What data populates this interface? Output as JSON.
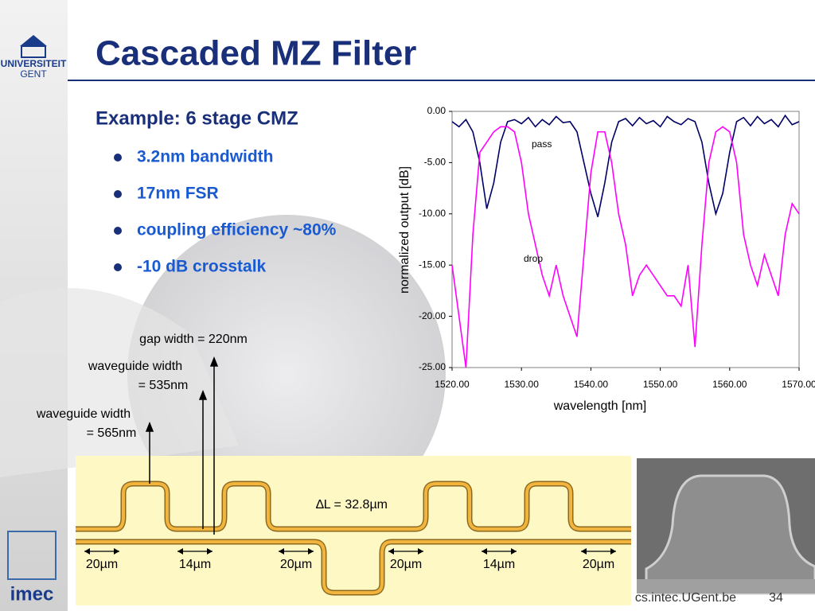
{
  "header": {
    "title": "Cascaded MZ Filter",
    "logo_top": "UNIVERSITEIT",
    "logo_bottom": "GENT"
  },
  "content": {
    "heading": "Example: 6 stage CMZ",
    "bullets": [
      "3.2nm bandwidth",
      "17nm FSR",
      "coupling efficiency ~80%",
      "-10 dB crosstalk"
    ]
  },
  "diagram": {
    "gap": "gap width = 220nm",
    "wg535": [
      "waveguide width",
      "= 535nm"
    ],
    "wg565": [
      "waveguide width",
      "= 565nm"
    ],
    "delta": "∆L = 32.8µm",
    "dimensions": [
      "20µm",
      "14µm",
      "20µm",
      "20µm",
      "14µm",
      "20µm"
    ]
  },
  "chart_data": {
    "type": "line",
    "xlabel": "wavelength [nm]",
    "ylabel": "normalized output [dB]",
    "x": [
      1520,
      1521,
      1522,
      1523,
      1524,
      1525,
      1526,
      1527,
      1528,
      1529,
      1530,
      1531,
      1532,
      1533,
      1534,
      1535,
      1536,
      1537,
      1538,
      1539,
      1540,
      1541,
      1542,
      1543,
      1544,
      1545,
      1546,
      1547,
      1548,
      1549,
      1550,
      1551,
      1552,
      1553,
      1554,
      1555,
      1556,
      1557,
      1558,
      1559,
      1560,
      1561,
      1562,
      1563,
      1564,
      1565,
      1566,
      1567,
      1568,
      1569,
      1570
    ],
    "series": [
      {
        "name": "pass",
        "color": "#000066",
        "values": [
          -1,
          -1.5,
          -0.8,
          -2,
          -5,
          -9.5,
          -7,
          -3,
          -1,
          -0.8,
          -1.2,
          -0.6,
          -1.5,
          -0.8,
          -1.3,
          -0.5,
          -1.1,
          -1,
          -2,
          -5,
          -8,
          -10.3,
          -7,
          -3,
          -1,
          -0.7,
          -1.4,
          -0.6,
          -1.2,
          -0.9,
          -1.5,
          -0.5,
          -1,
          -1.3,
          -0.7,
          -1,
          -3,
          -7,
          -10,
          -8,
          -4,
          -1,
          -0.6,
          -1.4,
          -0.5,
          -1.2,
          -0.8,
          -1.5,
          -0.4,
          -1.3,
          -1
        ]
      },
      {
        "name": "drop",
        "color": "#ff00ff",
        "values": [
          -15,
          -20,
          -25,
          -12,
          -4,
          -3,
          -2,
          -1.5,
          -1.5,
          -2,
          -5,
          -10,
          -13,
          -16,
          -18,
          -15,
          -18,
          -20,
          -22,
          -14,
          -6,
          -2,
          -2,
          -5,
          -10,
          -13,
          -18,
          -16,
          -15,
          -16,
          -17,
          -18,
          -18,
          -19,
          -15,
          -23,
          -13,
          -5,
          -2,
          -1.5,
          -2,
          -5,
          -12,
          -15,
          -17,
          -14,
          -16,
          -18,
          -12,
          -9,
          -10
        ]
      }
    ],
    "xlim": [
      1520,
      1570
    ],
    "ylim": [
      -25,
      0
    ],
    "xticks": [
      {
        "value": 1520,
        "label": "1520.00"
      },
      {
        "value": 1530,
        "label": "1530.00"
      },
      {
        "value": 1540,
        "label": "1540.00"
      },
      {
        "value": 1550,
        "label": "1550.00"
      },
      {
        "value": 1560,
        "label": "1560.00"
      },
      {
        "value": 1570,
        "label": "1570.00"
      }
    ],
    "yticks": [
      {
        "value": 0,
        "label": "0.00"
      },
      {
        "value": -5,
        "label": "-5.00"
      },
      {
        "value": -10,
        "label": "-10.00"
      },
      {
        "value": -15,
        "label": "-15.00"
      },
      {
        "value": -20,
        "label": "-20.00"
      },
      {
        "value": -25,
        "label": "-25.00"
      }
    ]
  },
  "footer": {
    "url": "cs.intec.UGent.be",
    "page": "34",
    "logo": "imec"
  }
}
